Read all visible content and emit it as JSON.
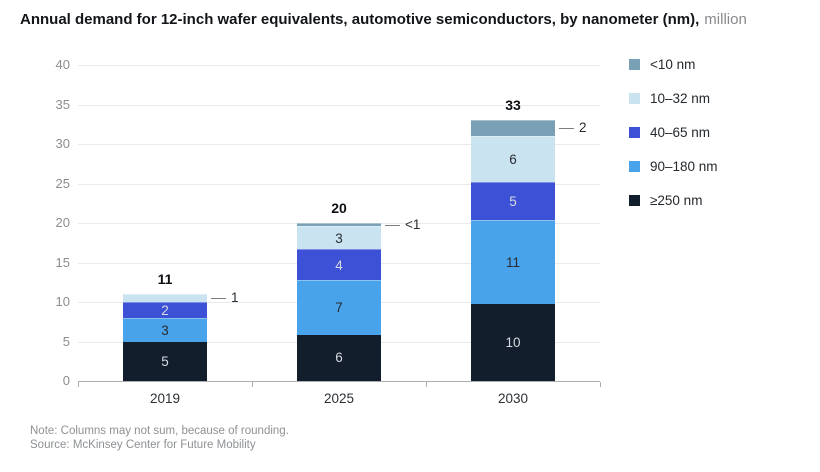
{
  "title": {
    "main": "Annual demand for 12-inch wafer equivalents, automotive semiconductors, by nanometer (nm),",
    "suffix": "million"
  },
  "legend": [
    {
      "label": "<10 nm",
      "color": "#7aa0b5"
    },
    {
      "label": "10–32 nm",
      "color": "#c9e3f0"
    },
    {
      "label": "40–65 nm",
      "color": "#3c51d6"
    },
    {
      "label": "90–180 nm",
      "color": "#49a3ea"
    },
    {
      "label": "≥250 nm",
      "color": "#121e2c"
    }
  ],
  "chart_data": {
    "type": "bar",
    "stacked": true,
    "title": "Annual demand for 12-inch wafer equivalents, automotive semiconductors, by nanometer (nm), million",
    "categories": [
      "2019",
      "2025",
      "2030"
    ],
    "ylim": [
      0,
      40
    ],
    "yticks": [
      0,
      5,
      10,
      15,
      20,
      25,
      30,
      35,
      40
    ],
    "grid": true,
    "legend_position": "right",
    "series": [
      {
        "name": "≥250 nm",
        "color": "#121e2c",
        "text": "light",
        "values": [
          5,
          6,
          10
        ],
        "labels": [
          "5",
          "6",
          "10"
        ]
      },
      {
        "name": "90–180 nm",
        "color": "#49a3ea",
        "text": "dark",
        "values": [
          3,
          7,
          11
        ],
        "labels": [
          "3",
          "7",
          "11"
        ]
      },
      {
        "name": "40–65 nm",
        "color": "#3c51d6",
        "text": "light",
        "values": [
          2,
          4,
          5
        ],
        "labels": [
          "2",
          "4",
          "5"
        ]
      },
      {
        "name": "10–32 nm",
        "color": "#c9e3f0",
        "text": "dark",
        "values": [
          1,
          3,
          6
        ],
        "labels": [
          "1",
          "3",
          "6"
        ]
      },
      {
        "name": "<10 nm",
        "color": "#7aa0b5",
        "text": "light",
        "values": [
          0,
          0.4,
          2
        ],
        "labels": [
          "",
          "<1",
          "2"
        ]
      }
    ],
    "totals": [
      "11",
      "20",
      "33"
    ],
    "totals_num": [
      11,
      20,
      33
    ],
    "callouts": [
      "1",
      "<1",
      "2"
    ]
  },
  "footnote": {
    "note": "Note: Columns may not sum, because of rounding.",
    "source": "Source: McKinsey Center for Future Mobility"
  }
}
